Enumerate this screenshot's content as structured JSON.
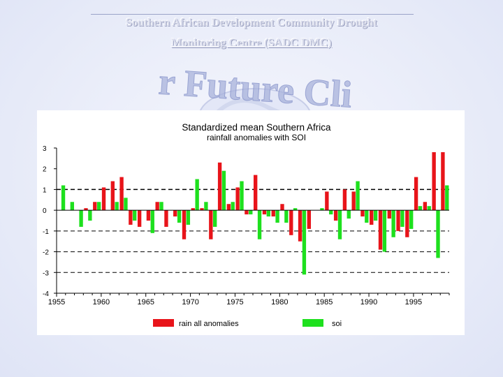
{
  "slide": {
    "title_line1": "Southern African Development Community Drought",
    "title_line2": "Monitoring Centre (SADC DMC)",
    "watermark_text": "r Future Cli"
  },
  "colors": {
    "rain": "#e8141a",
    "soi": "#1ee01e",
    "axis": "#000000",
    "panel": "#ffffff"
  },
  "chart_data": {
    "type": "bar",
    "title": "Standardized mean Southern Africa",
    "subtitle": "rainfall anomalies with SOI",
    "xlabel": "",
    "ylabel": "",
    "ylim": [
      -4,
      3
    ],
    "yticks": [
      "3",
      "2",
      "1",
      "0",
      "-1",
      "-2",
      "-3",
      "-4"
    ],
    "xticks": [
      "1955",
      "1960",
      "1965",
      "1970",
      "1975",
      "1980",
      "1985",
      "1990",
      "1995"
    ],
    "reference_lines": [
      1,
      -1,
      -2,
      -3
    ],
    "legend_position": "bottom",
    "x": [
      1955,
      1956,
      1957,
      1958,
      1959,
      1960,
      1961,
      1962,
      1963,
      1964,
      1965,
      1966,
      1967,
      1968,
      1969,
      1970,
      1971,
      1972,
      1973,
      1974,
      1975,
      1976,
      1977,
      1978,
      1979,
      1980,
      1981,
      1982,
      1983,
      1984,
      1985,
      1986,
      1987,
      1988,
      1989,
      1990,
      1991,
      1992,
      1993,
      1994,
      1995,
      1996,
      1997,
      1998
    ],
    "series": [
      {
        "name": "rain all anomalies",
        "values": [
          0.0,
          0.0,
          0.0,
          0.1,
          0.4,
          1.1,
          1.4,
          1.6,
          -0.7,
          -0.8,
          -0.5,
          0.4,
          -0.8,
          -0.3,
          -1.4,
          0.1,
          0.1,
          -1.4,
          2.3,
          0.3,
          1.1,
          -0.2,
          1.7,
          -0.2,
          -0.3,
          0.3,
          -1.2,
          -1.5,
          -0.9,
          0.0,
          0.9,
          -0.5,
          1.0,
          0.9,
          -0.3,
          -0.7,
          -1.9,
          -0.4,
          -1.0,
          -1.3,
          1.6,
          0.4,
          2.8,
          2.8
        ]
      },
      {
        "name": "soi",
        "values": [
          1.2,
          0.4,
          -0.8,
          -0.5,
          0.4,
          0.0,
          0.4,
          0.6,
          -0.5,
          0.0,
          -1.1,
          0.4,
          0.0,
          -0.6,
          -0.7,
          1.5,
          0.4,
          -0.8,
          1.9,
          0.4,
          1.4,
          -0.2,
          -1.4,
          -0.3,
          -0.6,
          -0.6,
          0.1,
          -3.1,
          0.0,
          0.1,
          -0.2,
          -1.4,
          -0.4,
          1.4,
          -0.6,
          -0.5,
          -2.0,
          -1.3,
          -0.8,
          -0.9,
          0.2,
          0.2,
          -2.3,
          1.2
        ]
      }
    ]
  }
}
